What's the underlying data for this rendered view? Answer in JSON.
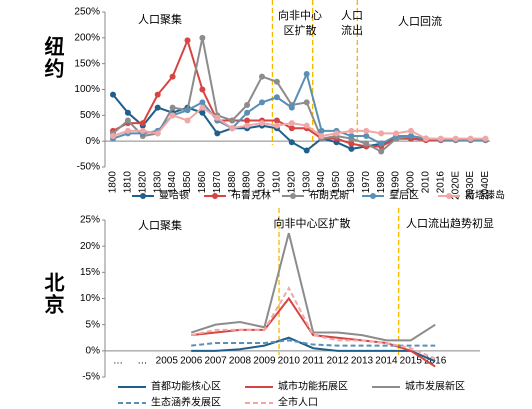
{
  "chart_data": [
    {
      "type": "line",
      "label": "纽约",
      "categories": [
        "1800",
        "1810",
        "1820",
        "1830",
        "1840",
        "1850",
        "1860",
        "1870",
        "1880",
        "1890",
        "1900",
        "1910",
        "1920",
        "1930",
        "1940",
        "1950",
        "1960",
        "1970",
        "1980",
        "1990",
        "2000",
        "2010",
        "2016",
        "2020E",
        "2030E",
        "2040E"
      ],
      "series": [
        {
          "name": "曼哈顿",
          "color": "#1f5f8b",
          "values": [
            90,
            55,
            30,
            65,
            55,
            65,
            55,
            15,
            25,
            25,
            30,
            25,
            -2,
            -18,
            5,
            -2,
            -15,
            -10,
            -5,
            5,
            5,
            3,
            2,
            2,
            2,
            2
          ]
        },
        {
          "name": "布鲁克林",
          "color": "#d64541",
          "values": [
            20,
            35,
            35,
            90,
            125,
            195,
            100,
            40,
            40,
            40,
            40,
            40,
            25,
            25,
            5,
            5,
            -5,
            -10,
            -10,
            5,
            5,
            2,
            2,
            2,
            2,
            2
          ]
        },
        {
          "name": "布朗克斯",
          "color": "#8c8c8c",
          "values": [
            15,
            40,
            10,
            15,
            65,
            60,
            200,
            50,
            40,
            70,
            125,
            115,
            70,
            75,
            5,
            10,
            5,
            -5,
            -20,
            5,
            10,
            5,
            3,
            2,
            2,
            2
          ]
        },
        {
          "name": "皇后区",
          "color": "#5a8fb5",
          "values": [
            5,
            15,
            15,
            20,
            50,
            60,
            75,
            40,
            25,
            55,
            75,
            85,
            65,
            130,
            20,
            20,
            10,
            10,
            -5,
            10,
            10,
            5,
            3,
            3,
            3,
            3
          ]
        },
        {
          "name": "斯塔滕岛",
          "color": "#f2a7a7",
          "values": [
            10,
            20,
            20,
            15,
            50,
            40,
            65,
            45,
            25,
            30,
            35,
            30,
            35,
            30,
            10,
            15,
            20,
            20,
            15,
            15,
            20,
            5,
            5,
            5,
            5,
            5
          ]
        }
      ],
      "ylim": [
        -50,
        250
      ],
      "yticks": [
        {
          "value": -50,
          "label": "-50%"
        },
        {
          "value": 0,
          "label": "0%"
        },
        {
          "value": 50,
          "label": "50%"
        },
        {
          "value": 100,
          "label": "100%"
        },
        {
          "value": 150,
          "label": "150%"
        },
        {
          "value": 200,
          "label": "200%"
        },
        {
          "value": 250,
          "label": "250%"
        }
      ],
      "markers": true,
      "annotations": [
        [
          "人口聚集"
        ],
        [
          "向非中心",
          "区扩散"
        ],
        [
          "人口",
          "流出"
        ],
        [
          "人口回流"
        ]
      ]
    },
    {
      "type": "line",
      "label": "北京",
      "categories": [
        "…",
        "…",
        "2005",
        "2006",
        "2007",
        "2008",
        "2009",
        "2010",
        "2011",
        "2012",
        "2013",
        "2014",
        "2015",
        "2016"
      ],
      "series": [
        {
          "name": "首都功能核心区",
          "color": "#1f5f8b",
          "style": "solid",
          "values": [
            null,
            null,
            null,
            0,
            0,
            0.3,
            1,
            2.5,
            0.5,
            0,
            0,
            0,
            0,
            -2
          ]
        },
        {
          "name": "城市功能拓展区",
          "color": "#d64541",
          "style": "solid",
          "values": [
            null,
            null,
            null,
            3,
            3.5,
            4,
            4,
            10,
            3,
            2.5,
            2,
            1.5,
            0,
            -3
          ]
        },
        {
          "name": "城市发展新区",
          "color": "#8c8c8c",
          "style": "solid",
          "values": [
            null,
            null,
            null,
            3.5,
            5,
            5.5,
            4.5,
            22.5,
            3.5,
            3.5,
            3,
            2,
            2,
            5
          ]
        },
        {
          "name": "生态涵养发展区",
          "color": "#5a8fb5",
          "style": "dashed",
          "values": [
            null,
            null,
            null,
            1,
            1.5,
            1.5,
            1.5,
            2,
            1.2,
            1,
            1,
            1,
            1,
            1
          ]
        },
        {
          "name": "全市人口",
          "color": "#f2a7a7",
          "style": "dashed",
          "values": [
            null,
            null,
            null,
            3,
            4,
            4,
            4,
            12,
            3,
            2,
            2,
            1.5,
            0.5,
            -1.5
          ]
        }
      ],
      "ylim": [
        -5,
        25
      ],
      "yticks": [
        {
          "value": -5,
          "label": "-5%"
        },
        {
          "value": 0,
          "label": "0%"
        },
        {
          "value": 5,
          "label": "5%"
        },
        {
          "value": 10,
          "label": "10%"
        },
        {
          "value": 15,
          "label": "15%"
        },
        {
          "value": 20,
          "label": "20%"
        },
        {
          "value": 25,
          "label": "25%"
        }
      ],
      "markers": false,
      "annotations": [
        [
          "人口聚集"
        ],
        [
          "向非中心区扩散"
        ],
        [
          "人口流出趋势初显"
        ]
      ]
    }
  ]
}
